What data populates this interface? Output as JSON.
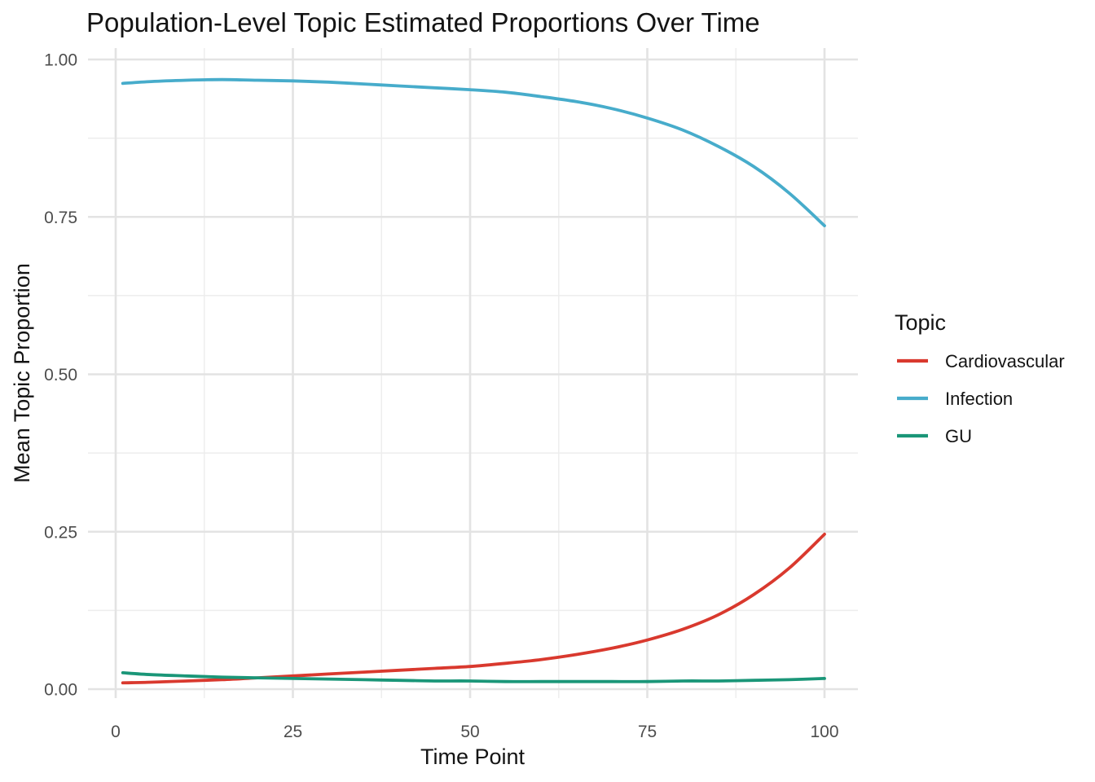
{
  "chart_data": {
    "type": "line",
    "title": "Population-Level Topic Estimated Proportions Over Time",
    "xlabel": "Time Point",
    "ylabel": "Mean Topic Proportion",
    "legend_title": "Topic",
    "legend_position": "right",
    "grid": "major+minor",
    "background": "#ffffff",
    "xlim": [
      0,
      100
    ],
    "ylim": [
      0,
      1
    ],
    "x_ticks": [
      0,
      25,
      50,
      75,
      100
    ],
    "x_tick_labels": [
      "0",
      "25",
      "50",
      "75",
      "100"
    ],
    "y_ticks": [
      0,
      0.25,
      0.5,
      0.75,
      1
    ],
    "y_tick_labels": [
      "0.00",
      "0.25",
      "0.50",
      "0.75",
      "1.00"
    ],
    "x_minor_ticks": [
      12.5,
      37.5,
      62.5,
      87.5
    ],
    "y_minor_ticks": [
      0.125,
      0.375,
      0.625,
      0.875
    ],
    "x": [
      1,
      5,
      10,
      15,
      20,
      25,
      30,
      35,
      40,
      45,
      50,
      55,
      60,
      65,
      70,
      75,
      80,
      85,
      90,
      95,
      100
    ],
    "series": [
      {
        "name": "Cardiovascular",
        "color": "#d9392e",
        "values": [
          0.01,
          0.011,
          0.013,
          0.015,
          0.018,
          0.021,
          0.024,
          0.027,
          0.03,
          0.033,
          0.036,
          0.041,
          0.047,
          0.055,
          0.065,
          0.078,
          0.095,
          0.118,
          0.15,
          0.192,
          0.246
        ]
      },
      {
        "name": "Infection",
        "color": "#47accb",
        "values": [
          0.962,
          0.965,
          0.967,
          0.968,
          0.967,
          0.966,
          0.964,
          0.961,
          0.958,
          0.955,
          0.952,
          0.948,
          0.941,
          0.933,
          0.922,
          0.907,
          0.888,
          0.862,
          0.83,
          0.788,
          0.736
        ]
      },
      {
        "name": "GU",
        "color": "#1a9678",
        "values": [
          0.026,
          0.023,
          0.021,
          0.019,
          0.018,
          0.017,
          0.016,
          0.015,
          0.014,
          0.013,
          0.013,
          0.012,
          0.012,
          0.012,
          0.012,
          0.012,
          0.013,
          0.013,
          0.014,
          0.015,
          0.017
        ]
      }
    ]
  }
}
